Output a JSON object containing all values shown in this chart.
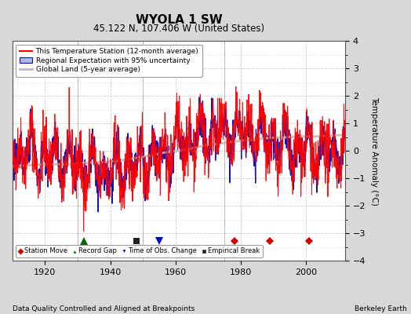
{
  "title": "WYOLA 1 SW",
  "subtitle": "45.122 N, 107.406 W (United States)",
  "ylabel": "Temperature Anomaly (°C)",
  "xlabel_left": "Data Quality Controlled and Aligned at Breakpoints",
  "xlabel_right": "Berkeley Earth",
  "ylim": [
    -4,
    4
  ],
  "xlim": [
    1910,
    2012
  ],
  "yticks": [
    -4,
    -3,
    -2,
    -1,
    0,
    1,
    2,
    3,
    4
  ],
  "xticks": [
    1920,
    1940,
    1960,
    1980,
    2000
  ],
  "grid_color": "#cccccc",
  "bg_color": "#d8d8d8",
  "plot_bg_color": "#ffffff",
  "red_line_color": "#ff0000",
  "blue_line_color": "#1111bb",
  "blue_fill_color": "#aabbdd",
  "gray_line_color": "#bbbbbb",
  "station_move_color": "#cc0000",
  "record_gap_color": "#006600",
  "obs_change_color": "#0000cc",
  "emp_break_color": "#222222",
  "vertical_lines_color": "#888888",
  "station_move_years": [
    1978,
    1989,
    2001
  ],
  "record_gap_years": [
    1932
  ],
  "obs_change_years": [
    1955
  ],
  "emp_break_years": [
    1948
  ],
  "seed": 42,
  "figsize": [
    5.24,
    4.0
  ],
  "dpi": 100
}
